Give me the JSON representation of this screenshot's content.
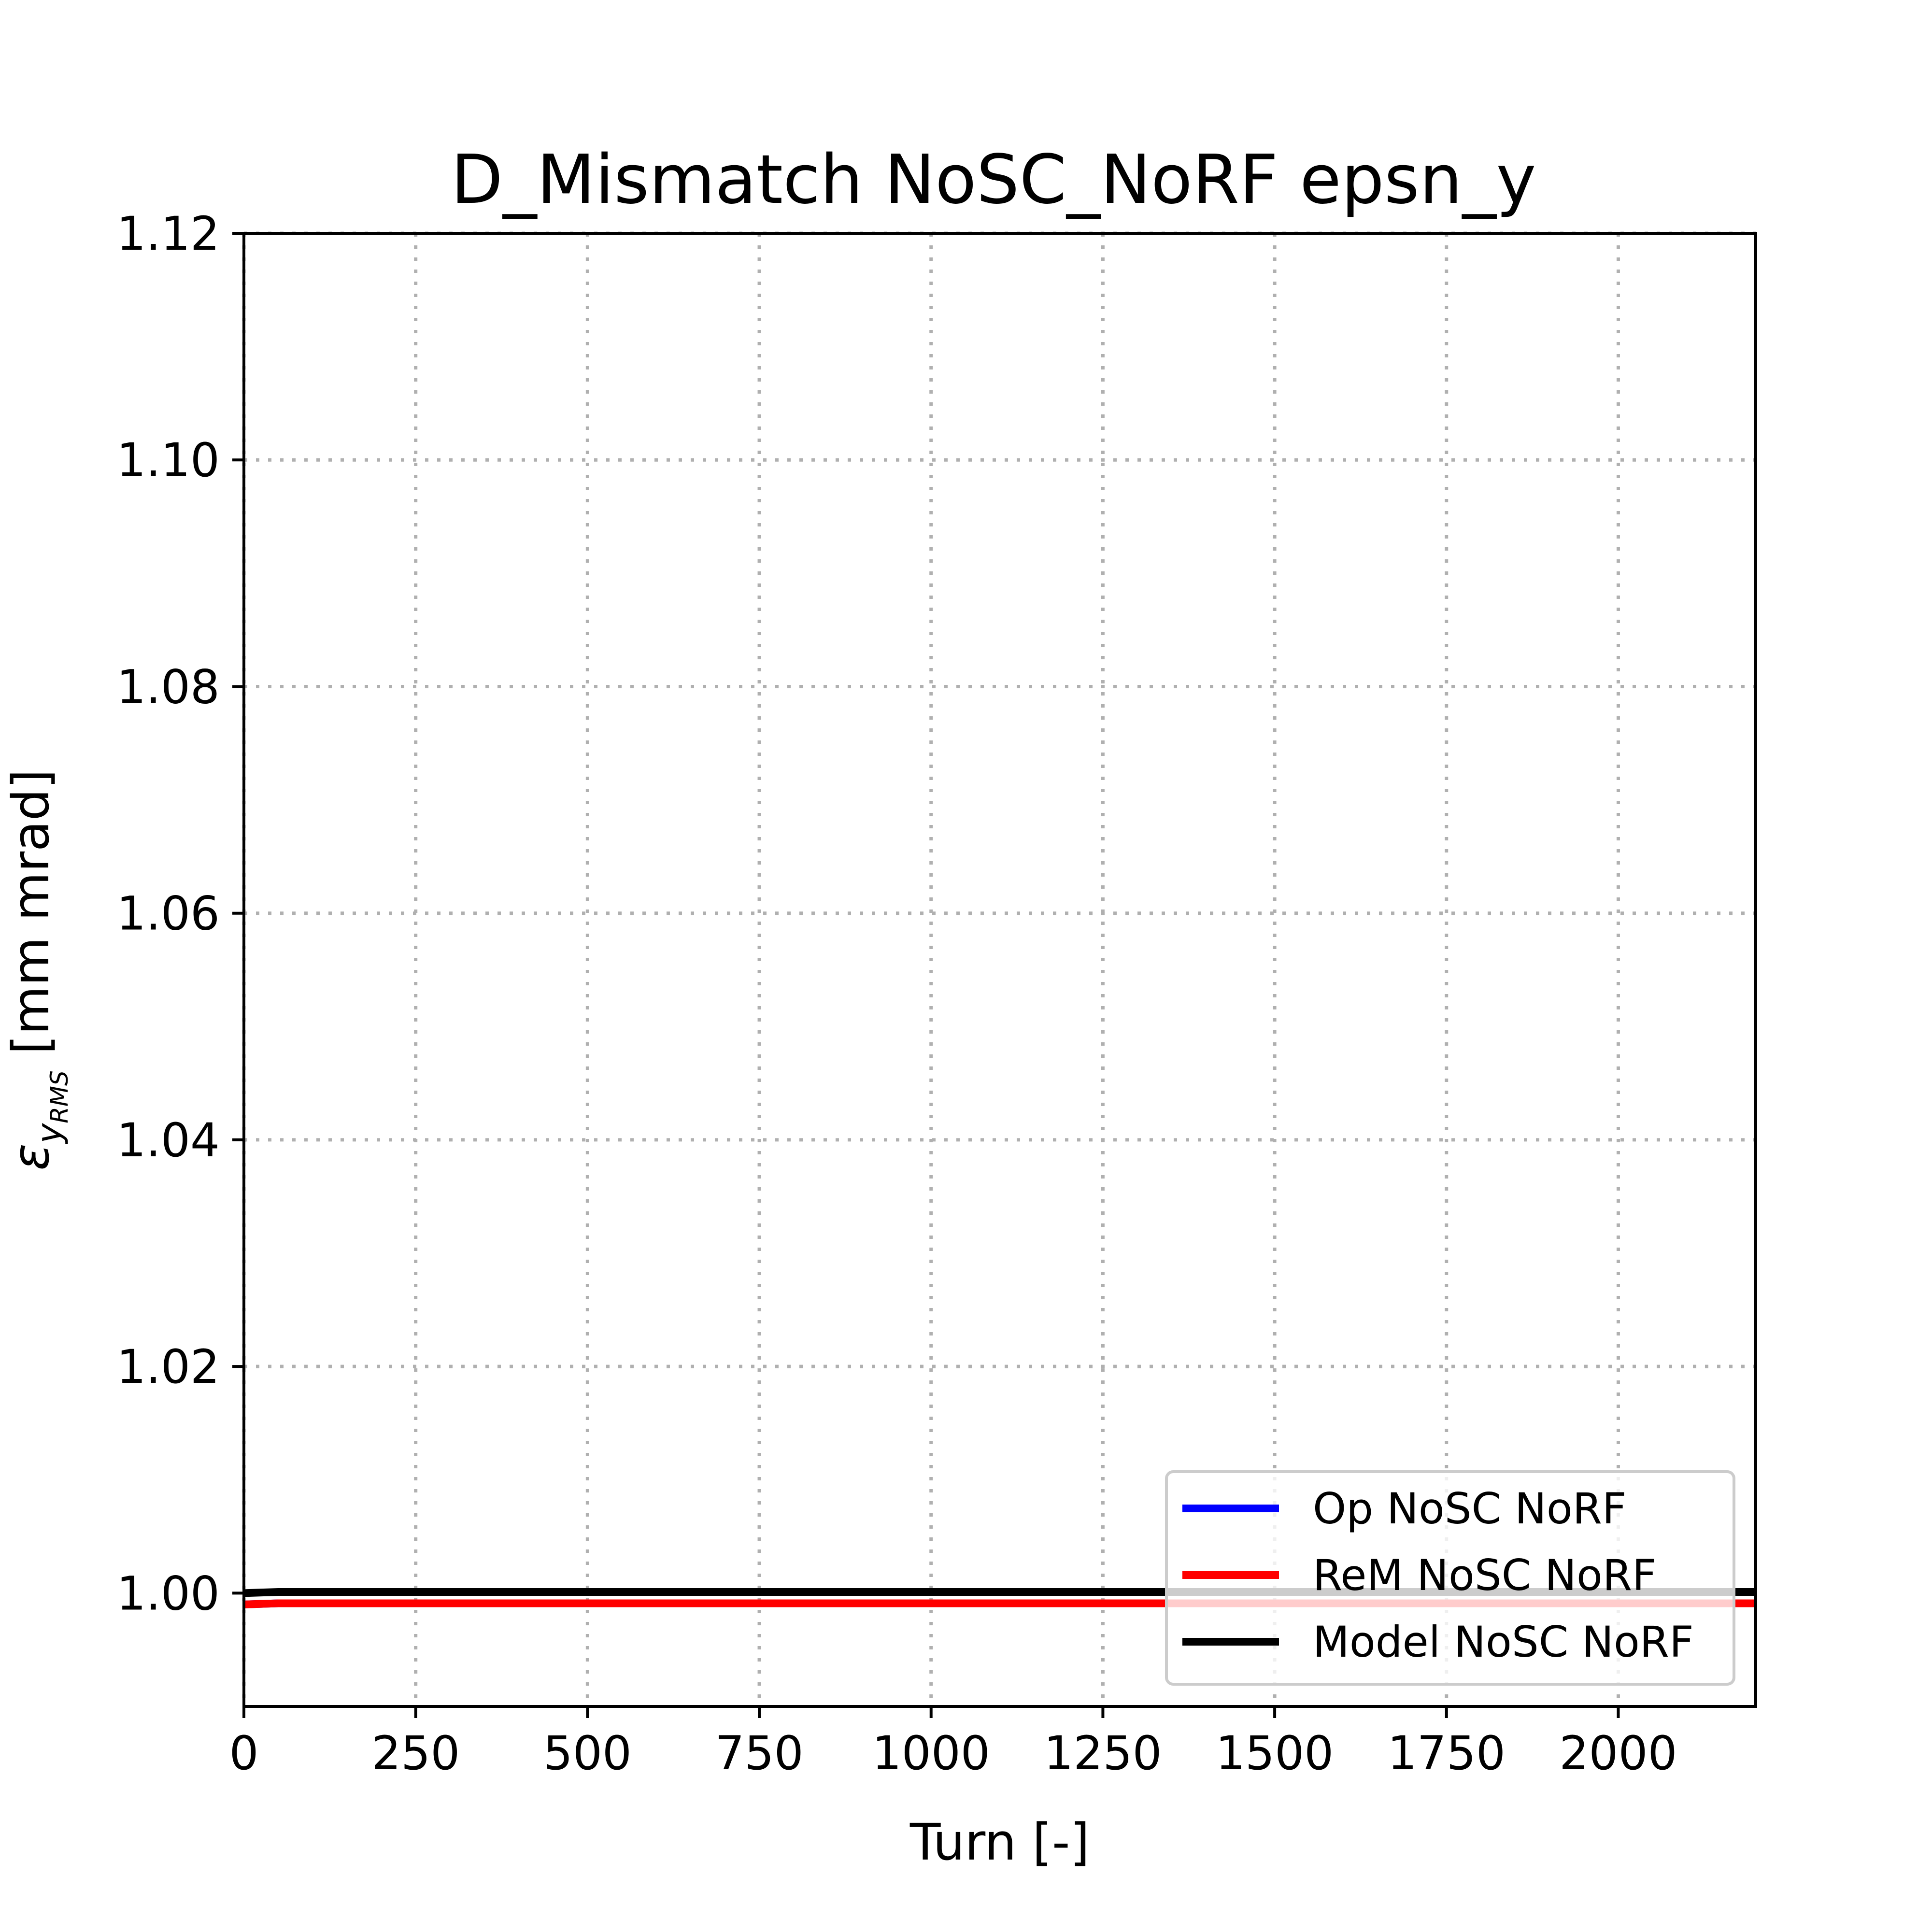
{
  "chart_data": {
    "type": "line",
    "title": "D_Mismatch NoSC_NoRF epsn_y",
    "xlabel": "Turn [-]",
    "ylabel": {
      "symbol": "ε",
      "sub": "y",
      "subsub": "RMS",
      "unit": " [mm mrad]"
    },
    "xlim": [
      0,
      2200
    ],
    "ylim": [
      0.99,
      1.12
    ],
    "xticks": [
      0,
      250,
      500,
      750,
      1000,
      1250,
      1500,
      1750,
      2000
    ],
    "yticks": [
      1.0,
      1.02,
      1.04,
      1.06,
      1.08,
      1.1,
      1.12
    ],
    "xtick_labels": [
      "0",
      "250",
      "500",
      "750",
      "1000",
      "1250",
      "1500",
      "1750",
      "2000"
    ],
    "ytick_labels": [
      "1.00",
      "1.02",
      "1.04",
      "1.06",
      "1.08",
      "1.10",
      "1.12"
    ],
    "grid": true,
    "legend_position": "lower-right",
    "series": [
      {
        "name": "Op NoSC NoRF",
        "color": "#0000ff",
        "x": [
          0,
          50,
          2200
        ],
        "y": [
          0.999,
          0.9991,
          0.9991
        ]
      },
      {
        "name": "ReM NoSC NoRF",
        "color": "#ff0000",
        "x": [
          0,
          50,
          2200
        ],
        "y": [
          0.999,
          0.9991,
          0.9991
        ]
      },
      {
        "name": "Model NoSC NoRF",
        "color": "#000000",
        "x": [
          0,
          50,
          2200
        ],
        "y": [
          1.0,
          1.0001,
          1.0001
        ]
      }
    ]
  }
}
